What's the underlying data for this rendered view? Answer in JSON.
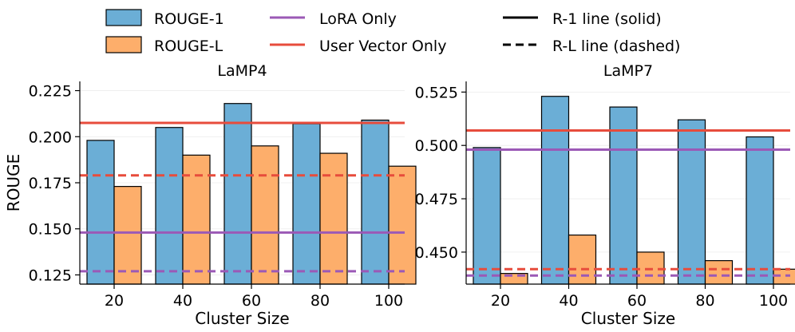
{
  "legend": {
    "items": [
      {
        "label": "ROUGE-1",
        "kind": "patch",
        "color": "#6baed6"
      },
      {
        "label": "ROUGE-L",
        "kind": "patch",
        "color": "#fdae6b"
      },
      {
        "label": "LoRA Only",
        "kind": "line",
        "color": "#9b59b6"
      },
      {
        "label": "User Vector Only",
        "kind": "line",
        "color": "#e74c3c"
      },
      {
        "label": "R-1 line (solid)",
        "kind": "line",
        "color": "#000000"
      },
      {
        "label": "R-L line (dashed)",
        "kind": "dashed",
        "color": "#000000"
      }
    ]
  },
  "colors": {
    "rouge1": "#6baed6",
    "rougeL": "#fdae6b",
    "lora": "#9b59b6",
    "uservec": "#e74c3c",
    "edge": "#000000"
  },
  "chart_data": [
    {
      "type": "bar",
      "title": "LaMP4",
      "xlabel": "Cluster Size",
      "ylabel": "ROUGE",
      "categories": [
        "20",
        "40",
        "60",
        "80",
        "100"
      ],
      "series": [
        {
          "name": "ROUGE-1",
          "values": [
            0.198,
            0.205,
            0.218,
            0.207,
            0.209
          ]
        },
        {
          "name": "ROUGE-L",
          "values": [
            0.173,
            0.19,
            0.195,
            0.191,
            0.184
          ]
        }
      ],
      "reference_lines": [
        {
          "name": "User Vector Only",
          "metric": "R-1",
          "style": "solid",
          "value": 0.2075
        },
        {
          "name": "User Vector Only",
          "metric": "R-L",
          "style": "dashed",
          "value": 0.179
        },
        {
          "name": "LoRA Only",
          "metric": "R-1",
          "style": "solid",
          "value": 0.148
        },
        {
          "name": "LoRA Only",
          "metric": "R-L",
          "style": "dashed",
          "value": 0.127
        }
      ],
      "ylim": [
        0.12,
        0.23
      ],
      "yticks": [
        0.125,
        0.15,
        0.175,
        0.2,
        0.225
      ],
      "ytick_labels": [
        "0.125",
        "0.150",
        "0.175",
        "0.200",
        "0.225"
      ]
    },
    {
      "type": "bar",
      "title": "LaMP7",
      "xlabel": "Cluster Size",
      "ylabel": "",
      "categories": [
        "20",
        "40",
        "60",
        "80",
        "100"
      ],
      "series": [
        {
          "name": "ROUGE-1",
          "values": [
            0.499,
            0.523,
            0.518,
            0.512,
            0.504
          ]
        },
        {
          "name": "ROUGE-L",
          "values": [
            0.44,
            0.458,
            0.45,
            0.446,
            0.442
          ]
        }
      ],
      "reference_lines": [
        {
          "name": "User Vector Only",
          "metric": "R-1",
          "style": "solid",
          "value": 0.507
        },
        {
          "name": "User Vector Only",
          "metric": "R-L",
          "style": "dashed",
          "value": 0.442
        },
        {
          "name": "LoRA Only",
          "metric": "R-1",
          "style": "solid",
          "value": 0.498
        },
        {
          "name": "LoRA Only",
          "metric": "R-L",
          "style": "dashed",
          "value": 0.439
        }
      ],
      "ylim": [
        0.435,
        0.53
      ],
      "yticks": [
        0.45,
        0.475,
        0.5,
        0.525
      ],
      "ytick_labels": [
        "0.450",
        "0.475",
        "0.500",
        "0.525"
      ]
    }
  ]
}
